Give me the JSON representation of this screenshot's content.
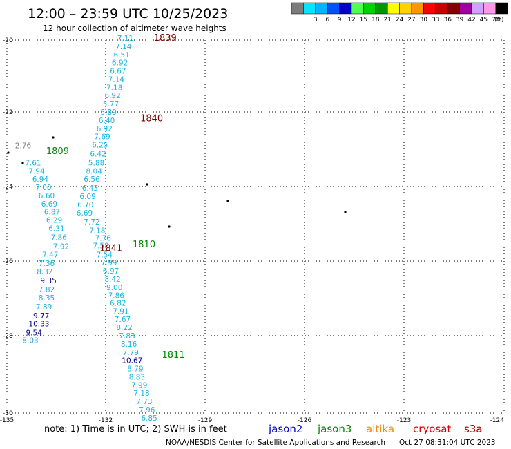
{
  "title": "12:00 – 23:59 UTC 10/25/2023",
  "subtitle": "12 hour collection of altimeter wave heights",
  "colors": {
    "cyan": "#1ab4e0",
    "lightblue": "#1ea0e8",
    "navy": "#00008c",
    "gray": "#808080",
    "green": "#008800",
    "maroon": "#7a0000",
    "jason2": "#0000cc",
    "jason3": "#008800",
    "altika": "#ff8c00",
    "cryosat": "#dd0000",
    "s3a": "#aa0000",
    "grid": "#000000",
    "coast": "#000000"
  },
  "scale_bar": {
    "unit": "(ft)",
    "entries": [
      {
        "label": "",
        "color": "#7c7c7c"
      },
      {
        "label": "3",
        "color": "#00e6ff"
      },
      {
        "label": "6",
        "color": "#00b4ff"
      },
      {
        "label": "9",
        "color": "#0050ff"
      },
      {
        "label": "12",
        "color": "#0000c8"
      },
      {
        "label": "15",
        "color": "#50ff50"
      },
      {
        "label": "18",
        "color": "#00d200"
      },
      {
        "label": "21",
        "color": "#009600"
      },
      {
        "label": "24",
        "color": "#ffff00"
      },
      {
        "label": "27",
        "color": "#ffd200"
      },
      {
        "label": "30",
        "color": "#ff9600"
      },
      {
        "label": "33",
        "color": "#ff0000"
      },
      {
        "label": "36",
        "color": "#c80000"
      },
      {
        "label": "39",
        "color": "#820000"
      },
      {
        "label": "42",
        "color": "#a000a0"
      },
      {
        "label": "45",
        "color": "#d2a0ff"
      },
      {
        "label": "70",
        "color": "#ff96e6"
      },
      {
        "label": "",
        "color": "#000000"
      }
    ]
  },
  "chart_data": {
    "type": "scatter",
    "title": "12:00 – 23:59 UTC 10/25/2023",
    "subtitle": "12 hour collection of altimeter wave heights",
    "xlim": [
      -135,
      -124
    ],
    "ylim": [
      -30,
      -20
    ],
    "x_ticks": [
      "-135",
      "-132",
      "-129",
      "-126",
      "-123",
      "-124"
    ],
    "y_ticks": [
      "-20",
      "-22",
      "-24",
      "-26",
      "-28",
      "-30"
    ],
    "grid": true,
    "points": [
      {
        "x": -132.56,
        "y": -20.02,
        "label": "7.11",
        "color": "cyan"
      },
      {
        "x": -132.6,
        "y": -20.24,
        "label": "7.14",
        "color": "cyan"
      },
      {
        "x": -132.64,
        "y": -20.46,
        "label": "6.51",
        "color": "cyan"
      },
      {
        "x": -132.68,
        "y": -20.68,
        "label": "6.92",
        "color": "cyan"
      },
      {
        "x": -132.72,
        "y": -20.9,
        "label": "6.67",
        "color": "cyan"
      },
      {
        "x": -132.76,
        "y": -21.12,
        "label": "7.14",
        "color": "cyan"
      },
      {
        "x": -132.8,
        "y": -21.34,
        "label": "7.18",
        "color": "cyan"
      },
      {
        "x": -132.84,
        "y": -21.56,
        "label": "6.92",
        "color": "cyan"
      },
      {
        "x": -132.88,
        "y": -21.78,
        "label": "5.77",
        "color": "cyan"
      },
      {
        "x": -132.93,
        "y": -22.0,
        "label": "5.89",
        "color": "cyan"
      },
      {
        "x": -132.97,
        "y": -22.22,
        "label": "6.40",
        "color": "cyan"
      },
      {
        "x": -133.02,
        "y": -22.44,
        "label": "6.92",
        "color": "cyan"
      },
      {
        "x": -133.07,
        "y": -22.66,
        "label": "7.69",
        "color": "cyan"
      },
      {
        "x": -133.12,
        "y": -22.88,
        "label": "6.25",
        "color": "cyan"
      },
      {
        "x": -133.16,
        "y": -23.12,
        "label": "6.42",
        "color": "cyan"
      },
      {
        "x": -133.2,
        "y": -23.36,
        "label": "5.88",
        "color": "cyan"
      },
      {
        "x": -133.25,
        "y": -23.58,
        "label": "8.04",
        "color": "cyan"
      },
      {
        "x": -133.3,
        "y": -23.8,
        "label": "6.56",
        "color": "cyan"
      },
      {
        "x": -133.34,
        "y": -24.04,
        "label": "6.43",
        "color": "cyan"
      },
      {
        "x": -133.39,
        "y": -24.26,
        "label": "6.09",
        "color": "cyan"
      },
      {
        "x": -133.44,
        "y": -24.48,
        "label": "6.70",
        "color": "cyan"
      },
      {
        "x": -133.46,
        "y": -24.7,
        "label": "6.69",
        "color": "cyan"
      },
      {
        "x": -133.3,
        "y": -24.94,
        "label": "7.72",
        "color": "cyan"
      },
      {
        "x": -133.18,
        "y": -25.18,
        "label": "7.18",
        "color": "cyan"
      },
      {
        "x": -133.05,
        "y": -25.38,
        "label": "7.76",
        "color": "cyan"
      },
      {
        "x": -133.1,
        "y": -25.58,
        "label": "7.58",
        "color": "cyan"
      },
      {
        "x": -133.02,
        "y": -25.82,
        "label": "7.54",
        "color": "cyan"
      },
      {
        "x": -132.92,
        "y": -26.04,
        "label": "7.99",
        "color": "cyan"
      },
      {
        "x": -132.88,
        "y": -26.26,
        "label": "6.97",
        "color": "cyan"
      },
      {
        "x": -132.84,
        "y": -26.48,
        "label": "8.42",
        "color": "cyan"
      },
      {
        "x": -132.8,
        "y": -26.7,
        "label": "9.00",
        "color": "cyan"
      },
      {
        "x": -132.76,
        "y": -26.92,
        "label": "7.86",
        "color": "cyan"
      },
      {
        "x": -132.72,
        "y": -27.12,
        "label": "6.82",
        "color": "cyan"
      },
      {
        "x": -132.66,
        "y": -27.34,
        "label": "7.91",
        "color": "cyan"
      },
      {
        "x": -132.62,
        "y": -27.56,
        "label": "7.67",
        "color": "cyan"
      },
      {
        "x": -132.58,
        "y": -27.78,
        "label": "8.22",
        "color": "cyan"
      },
      {
        "x": -132.52,
        "y": -28.0,
        "label": "7.83",
        "color": "cyan"
      },
      {
        "x": -132.48,
        "y": -28.22,
        "label": "8.16",
        "color": "cyan"
      },
      {
        "x": -132.44,
        "y": -28.44,
        "label": "7.79",
        "color": "cyan"
      },
      {
        "x": -132.46,
        "y": -28.66,
        "label": "10.67",
        "color": "navy"
      },
      {
        "x": -132.34,
        "y": -28.88,
        "label": "8.79",
        "color": "cyan"
      },
      {
        "x": -132.3,
        "y": -29.1,
        "label": "8.83",
        "color": "cyan"
      },
      {
        "x": -132.25,
        "y": -29.32,
        "label": "7.99",
        "color": "cyan"
      },
      {
        "x": -132.2,
        "y": -29.54,
        "label": "7.18",
        "color": "cyan"
      },
      {
        "x": -132.14,
        "y": -29.76,
        "label": "7.73",
        "color": "cyan"
      },
      {
        "x": -132.08,
        "y": -29.98,
        "label": "7.96",
        "color": "cyan"
      },
      {
        "x": -132.03,
        "y": -30.2,
        "label": "6.85",
        "color": "cyan"
      },
      {
        "x": -134.82,
        "y": -22.9,
        "label": "2.76",
        "color": "gray"
      },
      {
        "x": -134.6,
        "y": -23.36,
        "label": "7.61",
        "color": "cyan"
      },
      {
        "x": -134.52,
        "y": -23.58,
        "label": "7.94",
        "color": "cyan"
      },
      {
        "x": -134.44,
        "y": -23.8,
        "label": "6.94",
        "color": "cyan"
      },
      {
        "x": -134.37,
        "y": -24.02,
        "label": "7.00",
        "color": "cyan"
      },
      {
        "x": -134.3,
        "y": -24.24,
        "label": "6.60",
        "color": "cyan"
      },
      {
        "x": -134.24,
        "y": -24.46,
        "label": "6.69",
        "color": "cyan"
      },
      {
        "x": -134.18,
        "y": -24.68,
        "label": "6.87",
        "color": "cyan"
      },
      {
        "x": -134.13,
        "y": -24.9,
        "label": "6.29",
        "color": "cyan"
      },
      {
        "x": -134.08,
        "y": -25.12,
        "label": "6.31",
        "color": "cyan"
      },
      {
        "x": -134.03,
        "y": -25.36,
        "label": "7.86",
        "color": "cyan"
      },
      {
        "x": -133.98,
        "y": -25.6,
        "label": "7.92",
        "color": "cyan"
      },
      {
        "x": -134.22,
        "y": -25.82,
        "label": "7.47",
        "color": "cyan"
      },
      {
        "x": -134.3,
        "y": -26.06,
        "label": "7.36",
        "color": "cyan"
      },
      {
        "x": -134.34,
        "y": -26.28,
        "label": "8.32",
        "color": "cyan"
      },
      {
        "x": -134.26,
        "y": -26.52,
        "label": "9.35",
        "color": "navy"
      },
      {
        "x": -134.3,
        "y": -26.76,
        "label": "7.82",
        "color": "cyan"
      },
      {
        "x": -134.3,
        "y": -26.98,
        "label": "8.35",
        "color": "cyan"
      },
      {
        "x": -134.36,
        "y": -27.22,
        "label": "7.89",
        "color": "cyan"
      },
      {
        "x": -134.42,
        "y": -27.46,
        "label": "9.77",
        "color": "navy"
      },
      {
        "x": -134.52,
        "y": -27.68,
        "label": "10.33",
        "color": "navy"
      },
      {
        "x": -134.58,
        "y": -27.92,
        "label": "9.54",
        "color": "navy"
      },
      {
        "x": -134.66,
        "y": -28.12,
        "label": "8.03",
        "color": "lightblue"
      }
    ],
    "pass_labels": [
      {
        "x": -131.75,
        "y": -20.02,
        "label": "1839",
        "color": "maroon"
      },
      {
        "x": -132.05,
        "y": -22.18,
        "label": "1840",
        "color": "maroon"
      },
      {
        "x": -134.13,
        "y": -23.06,
        "label": "1809",
        "color": "green"
      },
      {
        "x": -132.95,
        "y": -25.66,
        "label": "1841",
        "color": "maroon"
      },
      {
        "x": -132.22,
        "y": -25.56,
        "label": "1810",
        "color": "green"
      },
      {
        "x": -131.57,
        "y": -28.52,
        "label": "1811",
        "color": "green"
      }
    ],
    "satellites": [
      {
        "name": "jason2",
        "color": "jason2"
      },
      {
        "name": "jason3",
        "color": "jason3"
      },
      {
        "name": "altika",
        "color": "altika"
      },
      {
        "name": "cryosat",
        "color": "cryosat"
      },
      {
        "name": "s3a",
        "color": "s3a"
      }
    ]
  },
  "footer": {
    "note": "note:  1) Time is in UTC; 2) SWH is in feet",
    "credit": "NOAA/NESDIS Center for Satellite Applications and Research",
    "timestamp": "Oct 27 08:31:04 UTC 2023"
  }
}
